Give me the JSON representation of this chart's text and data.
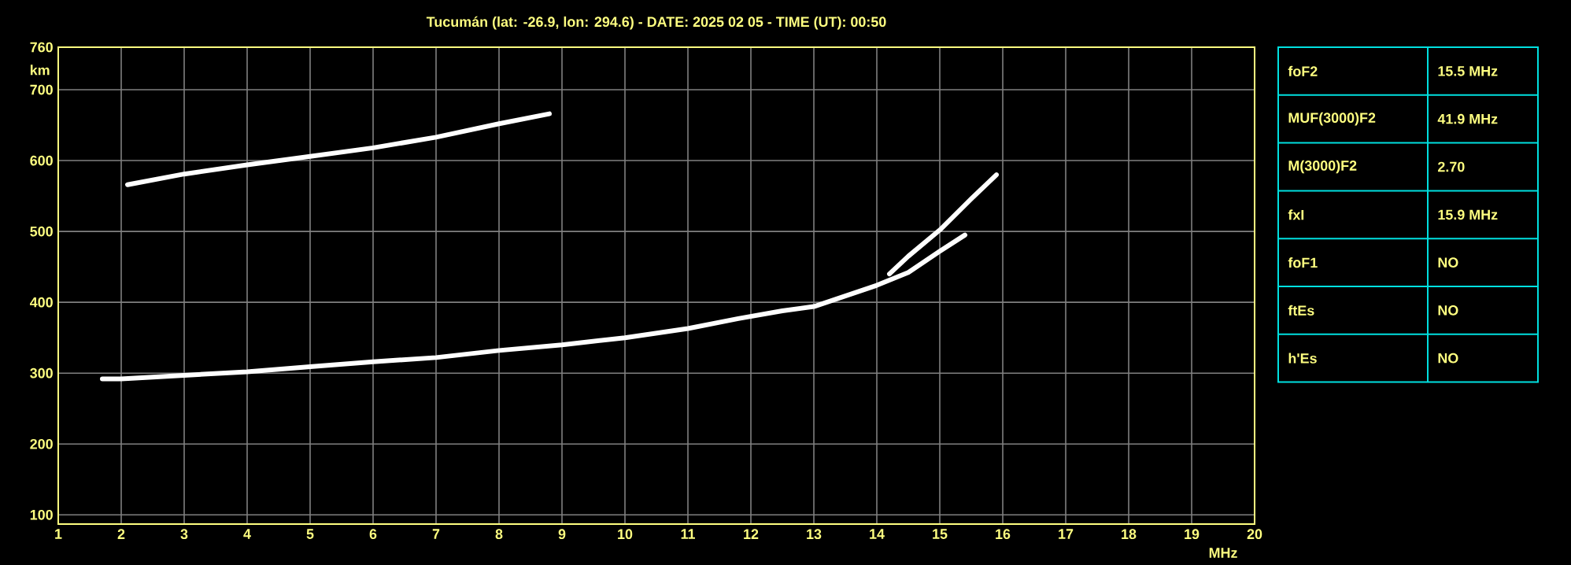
{
  "chart_data": [
    {
      "type": "line",
      "title": "Tucumán (lat: -26.9, lon: 294.6) - DATE: 2025 02 05 - TIME (UT): 00:50",
      "xlabel": "MHz",
      "ylabel": "km",
      "xlim": [
        1,
        20
      ],
      "ylim": [
        87,
        760
      ],
      "xticks": [
        1,
        2,
        3,
        4,
        5,
        6,
        7,
        8,
        9,
        10,
        11,
        12,
        13,
        14,
        15,
        16,
        17,
        18,
        19,
        20
      ],
      "yticks": [
        100,
        200,
        300,
        400,
        500,
        600,
        700,
        760
      ],
      "grid": true,
      "marker": "none",
      "line_style": "solid",
      "series": [
        {
          "color": "#ffffff",
          "x": [
            1.7,
            2,
            3,
            4,
            5,
            6,
            7,
            8,
            9,
            10,
            11,
            11.8,
            12.5,
            13,
            13.5,
            14,
            14.5,
            15,
            15.4
          ],
          "values": [
            292,
            292,
            297,
            302,
            309,
            316,
            322,
            332,
            340,
            350,
            363,
            377,
            388,
            394,
            409,
            424,
            442,
            472,
            495
          ]
        },
        {
          "color": "#ffffff",
          "x": [
            14.2,
            14.5,
            15,
            15.5,
            15.9
          ],
          "values": [
            440,
            465,
            502,
            546,
            580
          ]
        },
        {
          "color": "#ffffff",
          "x": [
            2.1,
            3,
            4,
            5,
            6,
            7,
            8,
            8.8
          ],
          "values": [
            566,
            581,
            594,
            606,
            618,
            633,
            652,
            666
          ]
        }
      ]
    },
    {
      "type": "other",
      "categories": [
        "foF2",
        "MUF(3000)F2",
        "M(3000)F2",
        "fxI",
        "foF1",
        "ftEs",
        "h'Es"
      ],
      "value_labels": [
        "15.5 MHz",
        "41.9 MHz",
        "2.70",
        "15.9 MHz",
        "NO",
        "NO",
        "NO"
      ]
    }
  ]
}
